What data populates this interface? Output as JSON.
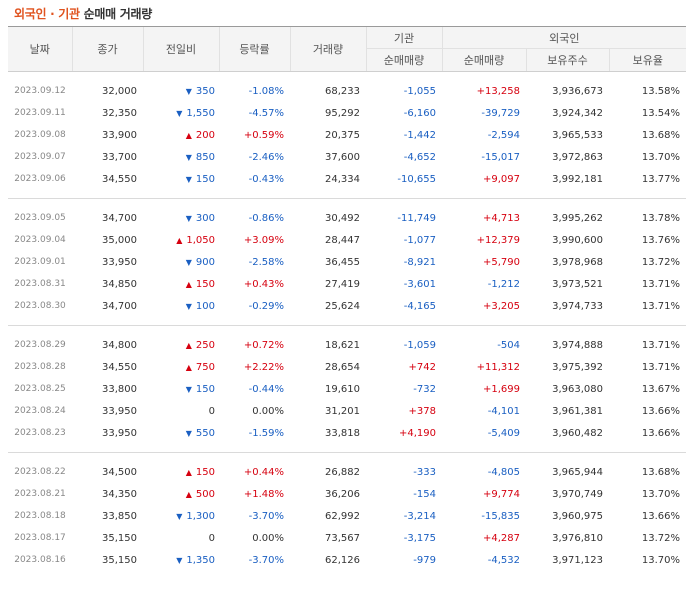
{
  "title": {
    "highlight": "외국인 · 기관",
    "rest": "순매매 거래량"
  },
  "headers": {
    "date": "날짜",
    "close": "종가",
    "diff": "전일비",
    "rate": "등락률",
    "volume": "거래량",
    "institution": "기관",
    "foreign": "외국인",
    "inst_net": "순매매량",
    "foreign_net": "순매매량",
    "holdings": "보유주수",
    "ratio": "보유율"
  },
  "groups": [
    [
      {
        "date": "2023.09.12",
        "close": "32,000",
        "dir": "down",
        "diff": "350",
        "rate": "-1.08%",
        "volume": "68,233",
        "inst": "-1,055",
        "frgn": "+13,258",
        "hold": "3,936,673",
        "ratio": "13.58%"
      },
      {
        "date": "2023.09.11",
        "close": "32,350",
        "dir": "down",
        "diff": "1,550",
        "rate": "-4.57%",
        "volume": "95,292",
        "inst": "-6,160",
        "frgn": "-39,729",
        "hold": "3,924,342",
        "ratio": "13.54%"
      },
      {
        "date": "2023.09.08",
        "close": "33,900",
        "dir": "up",
        "diff": "200",
        "rate": "+0.59%",
        "volume": "20,375",
        "inst": "-1,442",
        "frgn": "-2,594",
        "hold": "3,965,533",
        "ratio": "13.68%"
      },
      {
        "date": "2023.09.07",
        "close": "33,700",
        "dir": "down",
        "diff": "850",
        "rate": "-2.46%",
        "volume": "37,600",
        "inst": "-4,652",
        "frgn": "-15,017",
        "hold": "3,972,863",
        "ratio": "13.70%"
      },
      {
        "date": "2023.09.06",
        "close": "34,550",
        "dir": "down",
        "diff": "150",
        "rate": "-0.43%",
        "volume": "24,334",
        "inst": "-10,655",
        "frgn": "+9,097",
        "hold": "3,992,181",
        "ratio": "13.77%"
      }
    ],
    [
      {
        "date": "2023.09.05",
        "close": "34,700",
        "dir": "down",
        "diff": "300",
        "rate": "-0.86%",
        "volume": "30,492",
        "inst": "-11,749",
        "frgn": "+4,713",
        "hold": "3,995,262",
        "ratio": "13.78%"
      },
      {
        "date": "2023.09.04",
        "close": "35,000",
        "dir": "up",
        "diff": "1,050",
        "rate": "+3.09%",
        "volume": "28,447",
        "inst": "-1,077",
        "frgn": "+12,379",
        "hold": "3,990,600",
        "ratio": "13.76%"
      },
      {
        "date": "2023.09.01",
        "close": "33,950",
        "dir": "down",
        "diff": "900",
        "rate": "-2.58%",
        "volume": "36,455",
        "inst": "-8,921",
        "frgn": "+5,790",
        "hold": "3,978,968",
        "ratio": "13.72%"
      },
      {
        "date": "2023.08.31",
        "close": "34,850",
        "dir": "up",
        "diff": "150",
        "rate": "+0.43%",
        "volume": "27,419",
        "inst": "-3,601",
        "frgn": "-1,212",
        "hold": "3,973,521",
        "ratio": "13.71%"
      },
      {
        "date": "2023.08.30",
        "close": "34,700",
        "dir": "down",
        "diff": "100",
        "rate": "-0.29%",
        "volume": "25,624",
        "inst": "-4,165",
        "frgn": "+3,205",
        "hold": "3,974,733",
        "ratio": "13.71%"
      }
    ],
    [
      {
        "date": "2023.08.29",
        "close": "34,800",
        "dir": "up",
        "diff": "250",
        "rate": "+0.72%",
        "volume": "18,621",
        "inst": "-1,059",
        "frgn": "-504",
        "hold": "3,974,888",
        "ratio": "13.71%"
      },
      {
        "date": "2023.08.28",
        "close": "34,550",
        "dir": "up",
        "diff": "750",
        "rate": "+2.22%",
        "volume": "28,654",
        "inst": "+742",
        "frgn": "+11,312",
        "hold": "3,975,392",
        "ratio": "13.71%"
      },
      {
        "date": "2023.08.25",
        "close": "33,800",
        "dir": "down",
        "diff": "150",
        "rate": "-0.44%",
        "volume": "19,610",
        "inst": "-732",
        "frgn": "+1,699",
        "hold": "3,963,080",
        "ratio": "13.67%"
      },
      {
        "date": "2023.08.24",
        "close": "33,950",
        "dir": "none",
        "diff": "0",
        "rate": "0.00%",
        "volume": "31,201",
        "inst": "+378",
        "frgn": "-4,101",
        "hold": "3,961,381",
        "ratio": "13.66%"
      },
      {
        "date": "2023.08.23",
        "close": "33,950",
        "dir": "down",
        "diff": "550",
        "rate": "-1.59%",
        "volume": "33,818",
        "inst": "+4,190",
        "frgn": "-5,409",
        "hold": "3,960,482",
        "ratio": "13.66%"
      }
    ],
    [
      {
        "date": "2023.08.22",
        "close": "34,500",
        "dir": "up",
        "diff": "150",
        "rate": "+0.44%",
        "volume": "26,882",
        "inst": "-333",
        "frgn": "-4,805",
        "hold": "3,965,944",
        "ratio": "13.68%"
      },
      {
        "date": "2023.08.21",
        "close": "34,350",
        "dir": "up",
        "diff": "500",
        "rate": "+1.48%",
        "volume": "36,206",
        "inst": "-154",
        "frgn": "+9,774",
        "hold": "3,970,749",
        "ratio": "13.70%"
      },
      {
        "date": "2023.08.18",
        "close": "33,850",
        "dir": "down",
        "diff": "1,300",
        "rate": "-3.70%",
        "volume": "62,992",
        "inst": "-3,214",
        "frgn": "-15,835",
        "hold": "3,960,975",
        "ratio": "13.66%"
      },
      {
        "date": "2023.08.17",
        "close": "35,150",
        "dir": "none",
        "diff": "0",
        "rate": "0.00%",
        "volume": "73,567",
        "inst": "-3,175",
        "frgn": "+4,287",
        "hold": "3,976,810",
        "ratio": "13.72%"
      },
      {
        "date": "2023.08.16",
        "close": "35,150",
        "dir": "down",
        "diff": "1,350",
        "rate": "-3.70%",
        "volume": "62,126",
        "inst": "-979",
        "frgn": "-4,532",
        "hold": "3,971,123",
        "ratio": "13.70%"
      }
    ]
  ]
}
